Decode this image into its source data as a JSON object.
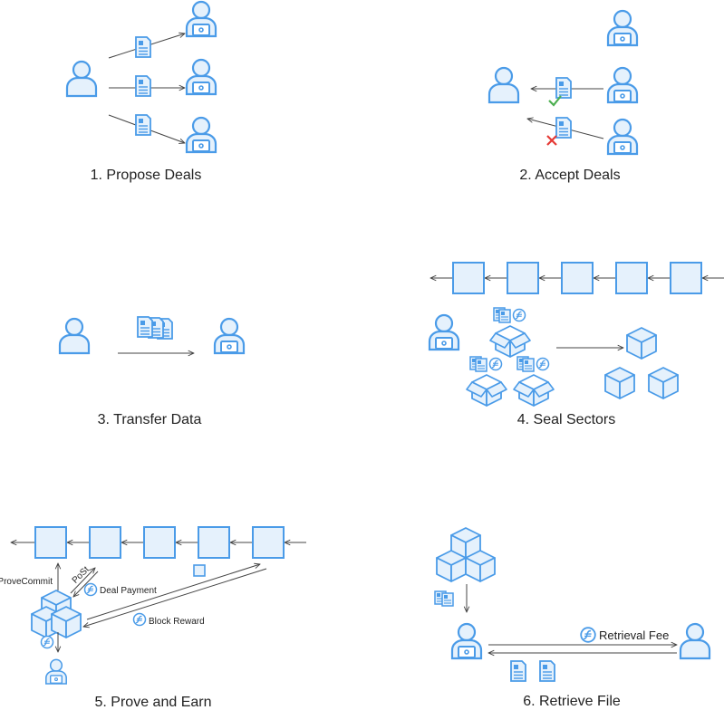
{
  "colors": {
    "accent": "#4a9be8",
    "fill": "#e5f1fc",
    "line": "#444444",
    "check": "#4caf50",
    "cross": "#e53935"
  },
  "steps": [
    {
      "caption": "1. Propose Deals"
    },
    {
      "caption": "2. Accept Deals"
    },
    {
      "caption": "3. Transfer Data"
    },
    {
      "caption": "4. Seal Sectors"
    },
    {
      "caption": "5. Prove and Earn"
    },
    {
      "caption": "6. Retrieve File"
    }
  ],
  "prove": {
    "provecommit_label": "ProveCommit",
    "post_label": "PoSt",
    "deal_payment_label": "Deal Payment",
    "block_reward_label": "Block Reward"
  },
  "retrieve": {
    "retrieval_fee_label": "Retrieval Fee"
  },
  "icons": [
    "user-icon",
    "miner-icon",
    "document-icon",
    "block-icon",
    "box-icon",
    "filecoin-icon",
    "check-icon",
    "cross-icon",
    "arrow-icon"
  ]
}
